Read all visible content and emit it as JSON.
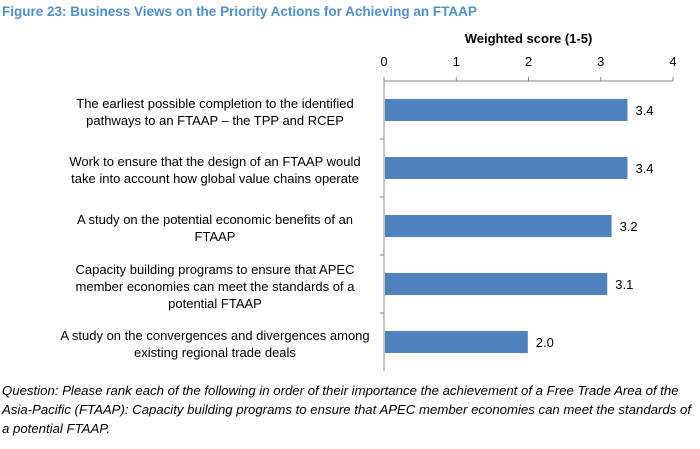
{
  "title": "Figure 23: Business Views on the Priority Actions for Achieving an FTAAP",
  "chart_data": {
    "type": "bar",
    "orientation": "horizontal",
    "xlabel": "Weighted score (1-5)",
    "xlim": [
      0,
      4
    ],
    "ticks": [
      "0",
      "1",
      "2",
      "3",
      "4"
    ],
    "categories": [
      "The earliest possible completion to the identified pathways to an FTAAP – the TPP and RCEP",
      "Work to ensure that the design of an FTAAP would take into account how global value chains operate",
      "A study on the potential economic benefits of an FTAAP",
      "Capacity building programs to ensure that APEC member economies can meet the standards of a potential FTAAP",
      "A study on the convergences and divergences among existing regional trade deals"
    ],
    "values": [
      3.37,
      3.37,
      3.15,
      3.09,
      1.99
    ],
    "data_labels": [
      "3.4",
      "3.4",
      "3.2",
      "3.1",
      "2.0"
    ],
    "bar_color": "#4f81bd",
    "grid": false
  },
  "note": "Question: Please rank each of the following in order of their importance the achievement of a Free Trade Area of the Asia-Pacific (FTAAP): Capacity building programs to ensure that APEC member economies can meet the standards of a potential FTAAP."
}
